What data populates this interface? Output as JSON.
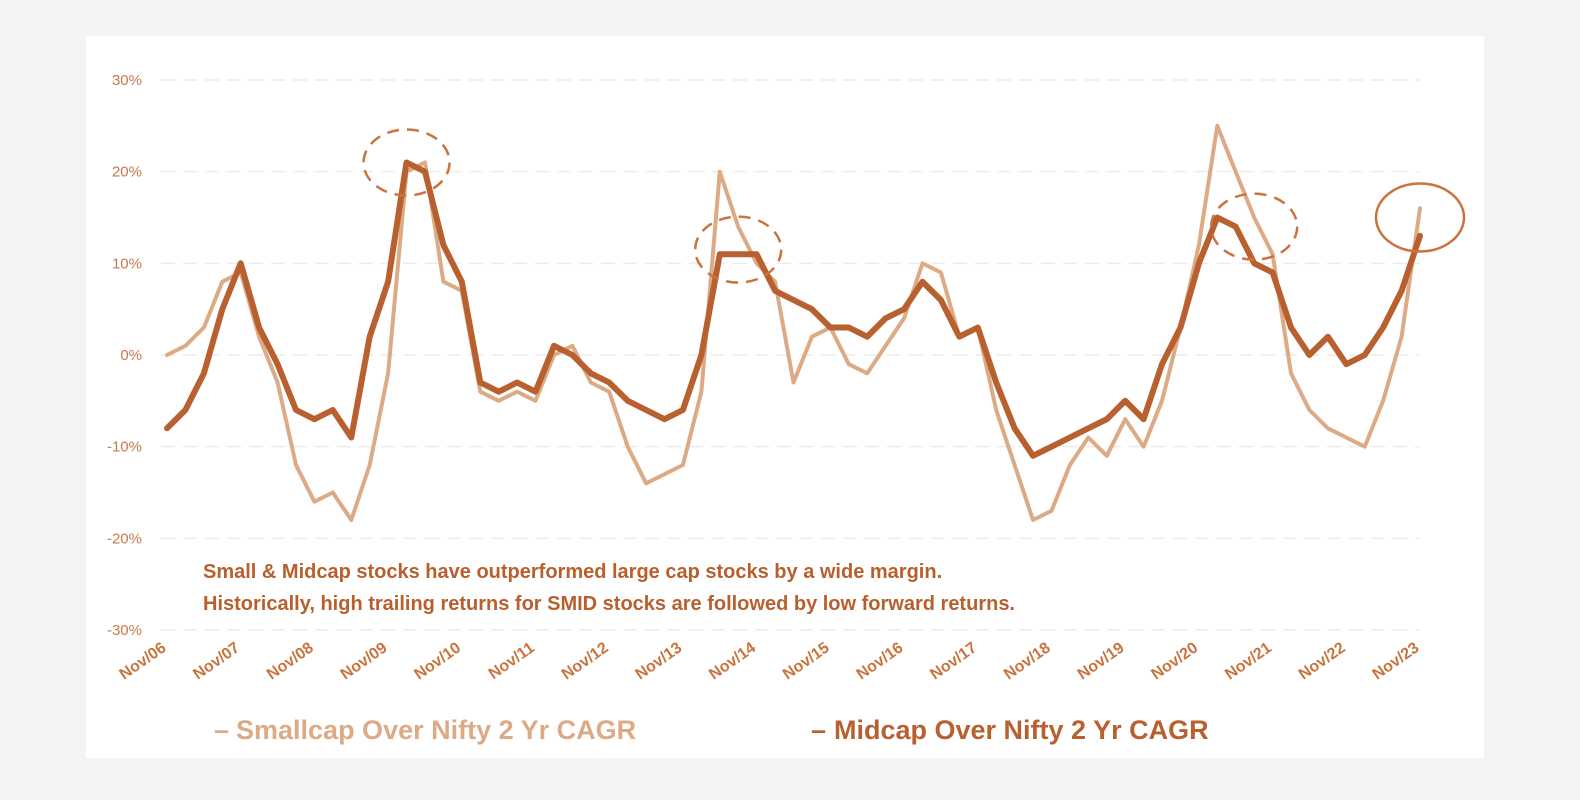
{
  "chart_data": {
    "type": "line",
    "title": "",
    "xlabel": "",
    "ylabel": "",
    "y_unit": "%",
    "ylim": [
      -30,
      30
    ],
    "y_ticks": [
      -30,
      -20,
      -10,
      0,
      10,
      20,
      30
    ],
    "y_tick_labels": [
      "-30%",
      "-20%",
      "-10%",
      "0%",
      "10%",
      "20%",
      "30%"
    ],
    "x_ticks": [
      "Nov/06",
      "Nov/07",
      "Nov/08",
      "Nov/09",
      "Nov/10",
      "Nov/11",
      "Nov/12",
      "Nov/13",
      "Nov/14",
      "Nov/15",
      "Nov/16",
      "Nov/17",
      "Nov/18",
      "Nov/19",
      "Nov/20",
      "Nov/21",
      "Nov/22",
      "Nov/23"
    ],
    "xlim": [
      "2006-11",
      "2023-11"
    ],
    "grid": "horizontal dashed",
    "legend_position": "bottom",
    "x": [
      "2006-11",
      "2007-02",
      "2007-05",
      "2007-08",
      "2007-11",
      "2008-02",
      "2008-05",
      "2008-08",
      "2008-11",
      "2009-02",
      "2009-05",
      "2009-08",
      "2009-11",
      "2010-02",
      "2010-05",
      "2010-08",
      "2010-11",
      "2011-02",
      "2011-05",
      "2011-08",
      "2011-11",
      "2012-02",
      "2012-05",
      "2012-08",
      "2012-11",
      "2013-02",
      "2013-05",
      "2013-08",
      "2013-11",
      "2014-02",
      "2014-05",
      "2014-08",
      "2014-11",
      "2015-02",
      "2015-05",
      "2015-08",
      "2015-11",
      "2016-02",
      "2016-05",
      "2016-08",
      "2016-11",
      "2017-02",
      "2017-05",
      "2017-08",
      "2017-11",
      "2018-02",
      "2018-05",
      "2018-08",
      "2018-11",
      "2019-02",
      "2019-05",
      "2019-08",
      "2019-11",
      "2020-02",
      "2020-05",
      "2020-08",
      "2020-11",
      "2021-02",
      "2021-05",
      "2021-08",
      "2021-11",
      "2022-02",
      "2022-05",
      "2022-08",
      "2022-11",
      "2023-02",
      "2023-05",
      "2023-08",
      "2023-11"
    ],
    "series": [
      {
        "name": "Smallcap Over Nifty 2 Yr CAGR",
        "color": "#dcaa85",
        "values": [
          0,
          1,
          3,
          8,
          9,
          2,
          -3,
          -12,
          -16,
          -15,
          -18,
          -12,
          -2,
          20,
          21,
          8,
          7,
          -4,
          -5,
          -4,
          -5,
          0,
          1,
          -3,
          -4,
          -10,
          -14,
          -13,
          -12,
          -4,
          20,
          14,
          10,
          8,
          -3,
          2,
          3,
          -1,
          -2,
          1,
          4,
          10,
          9,
          2,
          3,
          -6,
          -12,
          -18,
          -17,
          -12,
          -9,
          -11,
          -7,
          -10,
          -5,
          3,
          12,
          25,
          20,
          15,
          11,
          -2,
          -6,
          -8,
          -9,
          -10,
          -5,
          2,
          16
        ]
      },
      {
        "name": "Midcap Over Nifty 2 Yr CAGR",
        "color": "#b8602f",
        "values": [
          -8,
          -6,
          -2,
          5,
          10,
          3,
          -1,
          -6,
          -7,
          -6,
          -9,
          2,
          8,
          21,
          20,
          12,
          8,
          -3,
          -4,
          -3,
          -4,
          1,
          0,
          -2,
          -3,
          -5,
          -6,
          -7,
          -6,
          0,
          11,
          11,
          11,
          7,
          6,
          5,
          3,
          3,
          2,
          4,
          5,
          8,
          6,
          2,
          3,
          -3,
          -8,
          -11,
          -10,
          -9,
          -8,
          -7,
          -5,
          -7,
          -1,
          3,
          10,
          15,
          14,
          10,
          9,
          3,
          0,
          2,
          -1,
          0,
          3,
          7,
          13
        ]
      }
    ],
    "annotation_lines": [
      "Small & Midcap stocks have outperformed large cap stocks by a wide margin.",
      "Historically, high trailing returns for SMID stocks are followed by low forward returns."
    ],
    "highlights": [
      {
        "style": "dashed",
        "at": "2010-02",
        "y": 21
      },
      {
        "style": "dashed",
        "at": "2014-08",
        "y": 11.5
      },
      {
        "style": "dashed",
        "at": "2021-08",
        "y": 14
      },
      {
        "style": "solid",
        "at": "2023-11",
        "y": 15
      }
    ],
    "legend_marker": "–"
  }
}
